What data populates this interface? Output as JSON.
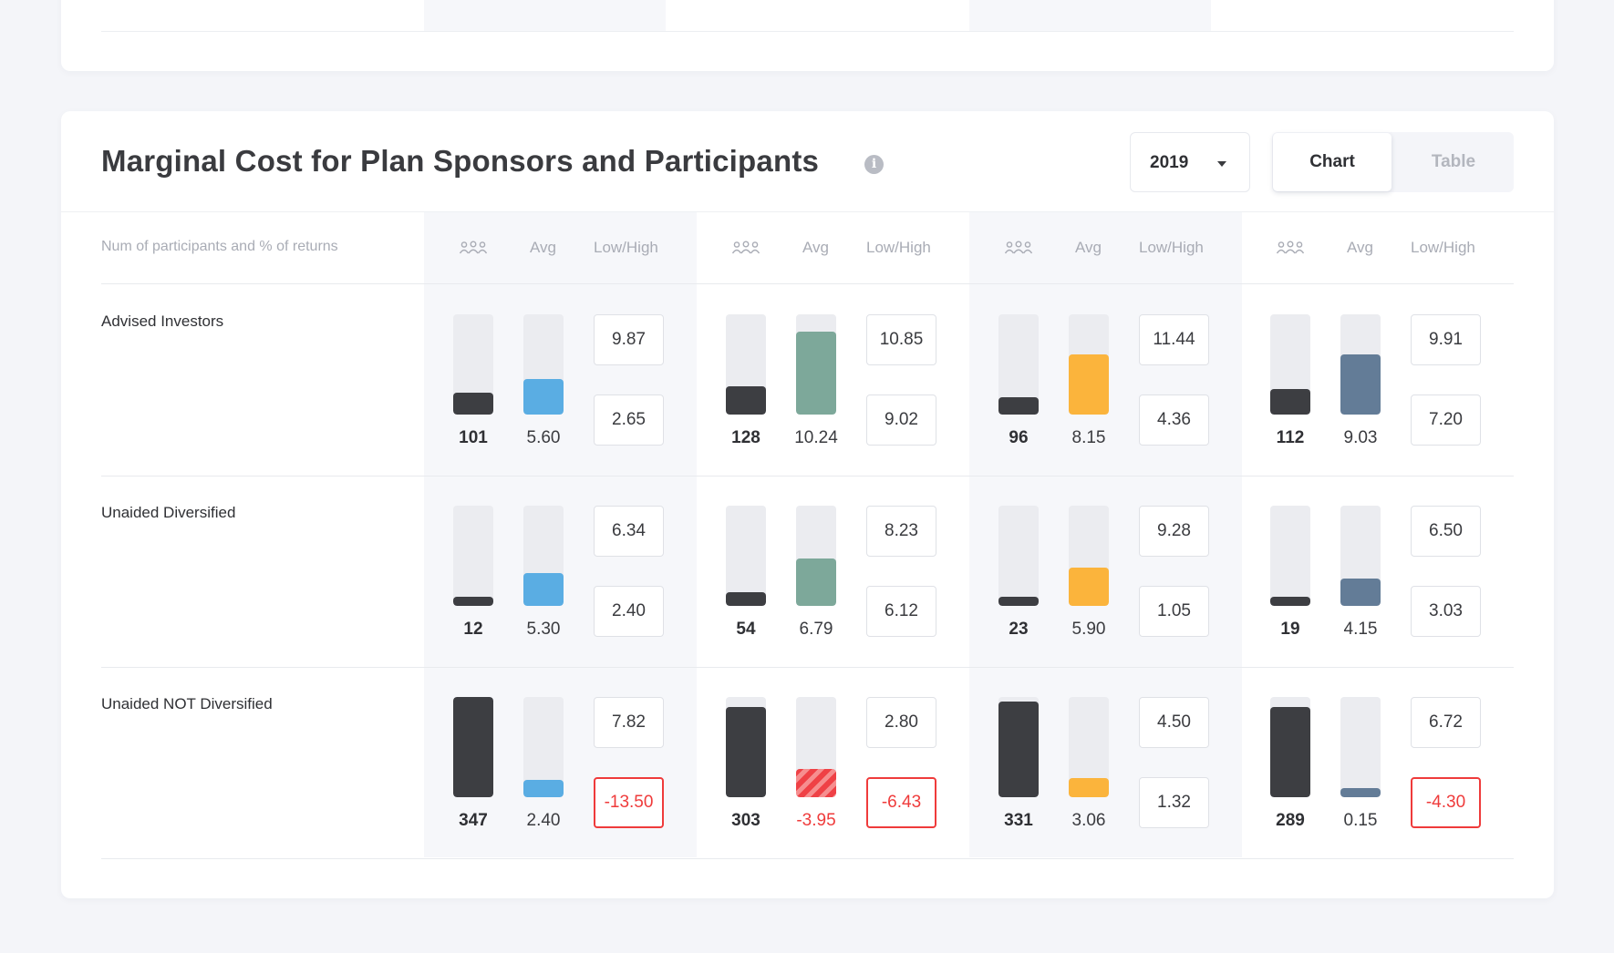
{
  "card": {
    "title": "Marginal Cost for Plan Sponsors and Participants",
    "info_icon": "info-icon",
    "year_select": {
      "value": "2019",
      "icon": "chevron-down-icon"
    },
    "view_toggle": {
      "active": "Chart",
      "options": [
        "Chart",
        "Table"
      ]
    }
  },
  "table": {
    "header_label": "Num of participants and % of returns",
    "column_headers": {
      "participants_icon": "people-icon",
      "avg": "Avg",
      "low_high": "Low/High"
    },
    "colors": {
      "participants": "#3d3e42",
      "group1": "#5aade3",
      "group2": "#7da89a",
      "group3": "#fbb43c",
      "group4": "#637c97",
      "negative": "#ef3b3b",
      "track": "#ebecf0"
    },
    "rows": [
      {
        "label": "Advised Investors",
        "groups": [
          {
            "participants": "101",
            "participants_level": 0.22,
            "avg": "5.60",
            "avg_level": 0.35,
            "high": "9.87",
            "low": "2.65",
            "avg_negative": false,
            "low_negative": false
          },
          {
            "participants": "128",
            "participants_level": 0.28,
            "avg": "10.24",
            "avg_level": 0.83,
            "high": "10.85",
            "low": "9.02",
            "avg_negative": false,
            "low_negative": false
          },
          {
            "participants": "96",
            "participants_level": 0.17,
            "avg": "8.15",
            "avg_level": 0.6,
            "high": "11.44",
            "low": "4.36",
            "avg_negative": false,
            "low_negative": false
          },
          {
            "participants": "112",
            "participants_level": 0.25,
            "avg": "9.03",
            "avg_level": 0.6,
            "high": "9.91",
            "low": "7.20",
            "avg_negative": false,
            "low_negative": false
          }
        ]
      },
      {
        "label": "Unaided Diversified",
        "groups": [
          {
            "participants": "12",
            "participants_level": 0.09,
            "avg": "5.30",
            "avg_level": 0.33,
            "high": "6.34",
            "low": "2.40",
            "avg_negative": false,
            "low_negative": false
          },
          {
            "participants": "54",
            "participants_level": 0.14,
            "avg": "6.79",
            "avg_level": 0.47,
            "high": "8.23",
            "low": "6.12",
            "avg_negative": false,
            "low_negative": false
          },
          {
            "participants": "23",
            "participants_level": 0.09,
            "avg": "5.90",
            "avg_level": 0.38,
            "high": "9.28",
            "low": "1.05",
            "avg_negative": false,
            "low_negative": false
          },
          {
            "participants": "19",
            "participants_level": 0.09,
            "avg": "4.15",
            "avg_level": 0.27,
            "high": "6.50",
            "low": "3.03",
            "avg_negative": false,
            "low_negative": false
          }
        ]
      },
      {
        "label": "Unaided NOT Diversified",
        "groups": [
          {
            "participants": "347",
            "participants_level": 1.0,
            "avg": "2.40",
            "avg_level": 0.17,
            "high": "7.82",
            "low": "-13.50",
            "avg_negative": false,
            "low_negative": true
          },
          {
            "participants": "303",
            "participants_level": 0.9,
            "avg": "-3.95",
            "avg_level": 0.28,
            "high": "2.80",
            "low": "-6.43",
            "avg_negative": true,
            "low_negative": true
          },
          {
            "participants": "331",
            "participants_level": 0.95,
            "avg": "3.06",
            "avg_level": 0.19,
            "high": "4.50",
            "low": "1.32",
            "avg_negative": false,
            "low_negative": false
          },
          {
            "participants": "289",
            "participants_level": 0.9,
            "avg": "0.15",
            "avg_level": 0.09,
            "high": "6.72",
            "low": "-4.30",
            "avg_negative": false,
            "low_negative": true
          }
        ]
      }
    ]
  }
}
